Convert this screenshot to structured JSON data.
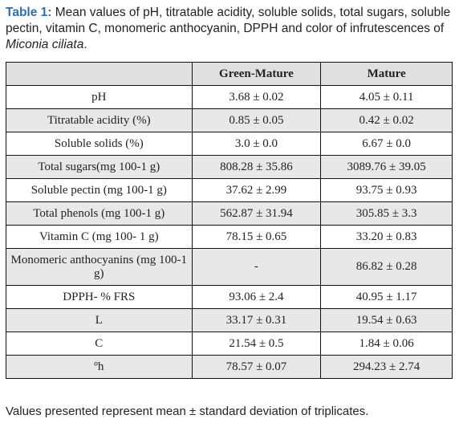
{
  "caption": {
    "label": "Table 1:",
    "text": " Mean values of pH, titratable acidity, soluble solids, total sugars, soluble pectin, vitamin C, monomeric anthocyanin, DPPH and color of infrutescences of ",
    "species": "Miconia ciliata",
    "end": "."
  },
  "table": {
    "headers": [
      "",
      "Green-Mature",
      "Mature"
    ],
    "rows": [
      {
        "parameter": "pH",
        "green_mature": "3.68 ± 0.02",
        "mature": "4.05 ± 0.11"
      },
      {
        "parameter": "Titratable acidity (%)",
        "green_mature": "0.85 ± 0.05",
        "mature": "0.42 ± 0.02"
      },
      {
        "parameter": "Soluble solids (%)",
        "green_mature": "3.0 ± 0.0",
        "mature": "6.67 ± 0.0"
      },
      {
        "parameter": "Total sugars(mg 100-1 g)",
        "green_mature": "808.28 ± 35.86",
        "mature": "3089.76 ± 39.05"
      },
      {
        "parameter": "Soluble pectin (mg 100-1 g)",
        "green_mature": "37.62 ± 2.99",
        "mature": "93.75 ± 0.93"
      },
      {
        "parameter": "Total phenols (mg 100-1 g)",
        "green_mature": "562.87 ± 31.94",
        "mature": "305.85 ± 3.3"
      },
      {
        "parameter": "Vitamin C (mg 100- 1 g)",
        "green_mature": "78.15 ± 0.65",
        "mature": "33.20 ± 0.83"
      },
      {
        "parameter": "Monomeric anthocyanins (mg 100-1 g)",
        "green_mature": "-",
        "mature": "86.82 ± 0.28"
      },
      {
        "parameter": "DPPH- % FRS",
        "green_mature": "93.06 ± 2.4",
        "mature": "40.95 ± 1.17"
      },
      {
        "parameter": "L",
        "green_mature": "33.17 ± 0.31",
        "mature": "19.54 ± 0.63"
      },
      {
        "parameter": "C",
        "green_mature": "21.54 ± 0.5",
        "mature": "1.84 ± 0.06"
      },
      {
        "parameter": "ºh",
        "green_mature": "78.57 ± 0.07",
        "mature": "294.23 ± 2.74"
      }
    ]
  },
  "footnote": "Values presented represent mean ± standard deviation of triplicates."
}
